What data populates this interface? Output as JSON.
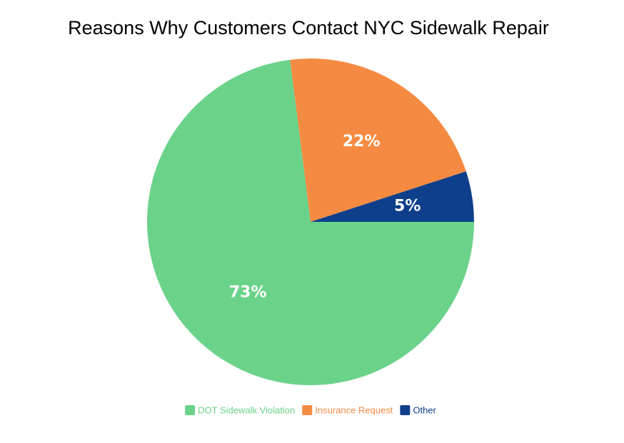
{
  "chart_data": {
    "type": "pie",
    "title": "Reasons Why Customers Contact NYC Sidewalk Repair",
    "categories": [
      "DOT Sidewalk Violation",
      "Insurance Request",
      "Other"
    ],
    "values": [
      73,
      22,
      5
    ],
    "value_labels": [
      "73%",
      "22%",
      "5%"
    ],
    "colors": [
      "#6bd28a",
      "#f58b42",
      "#0e3f8b"
    ],
    "legend": "bottom"
  }
}
